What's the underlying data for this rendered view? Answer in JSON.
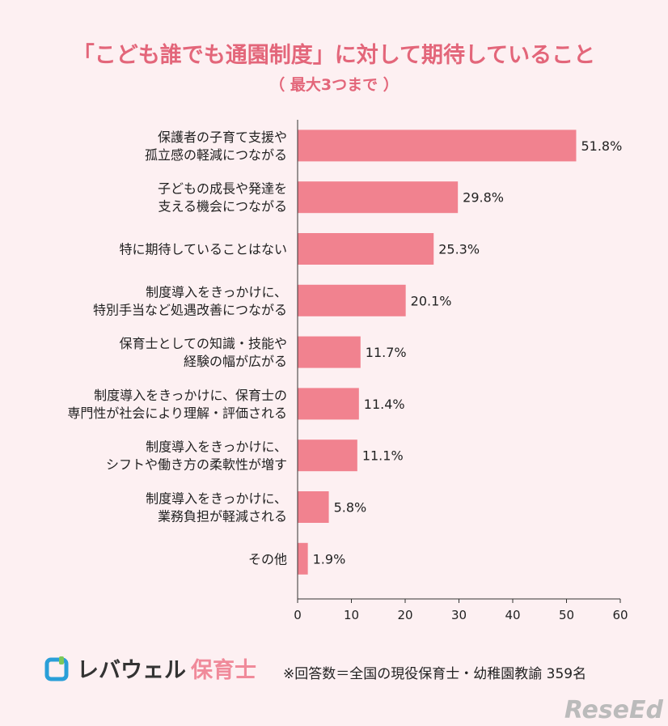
{
  "chart_data": {
    "type": "bar",
    "orientation": "horizontal",
    "title": "「こども誰でも通園制度」に対して期待していること",
    "subtitle": "（ 最大3つまで ）",
    "categories": [
      [
        "保護者の子育て支援や",
        "孤立感の軽減につながる"
      ],
      [
        "子どもの成長や発達を",
        "支える機会につながる"
      ],
      [
        "特に期待していることはない"
      ],
      [
        "制度導入をきっかけに、",
        "特別手当など処遇改善につながる"
      ],
      [
        "保育士としての知識・技能や",
        "経験の幅が広がる"
      ],
      [
        "制度導入をきっかけに、保育士の",
        "専門性が社会により理解・評価される"
      ],
      [
        "制度導入をきっかけに、",
        "シフトや働き方の柔軟性が増す"
      ],
      [
        "制度導入をきっかけに、",
        "業務負担が軽減される"
      ],
      [
        "その他"
      ]
    ],
    "values": [
      51.8,
      29.8,
      25.3,
      20.1,
      11.7,
      11.4,
      11.1,
      5.8,
      1.9
    ],
    "value_labels": [
      "51.8%",
      "29.8%",
      "25.3%",
      "20.1%",
      "11.7%",
      "11.4%",
      "11.1%",
      "5.8%",
      "1.9%"
    ],
    "xlim": [
      0,
      60
    ],
    "xticks": [
      0,
      10,
      20,
      30,
      40,
      50,
      60
    ],
    "grid": false,
    "bar_color": "#f1828f"
  },
  "footer": {
    "logo_text": "レバウェル",
    "logo_text_accent": "保育士",
    "note": "※回答数＝全国の現役保育士・幼稚園教諭 359名",
    "watermark": "ReseEd"
  }
}
